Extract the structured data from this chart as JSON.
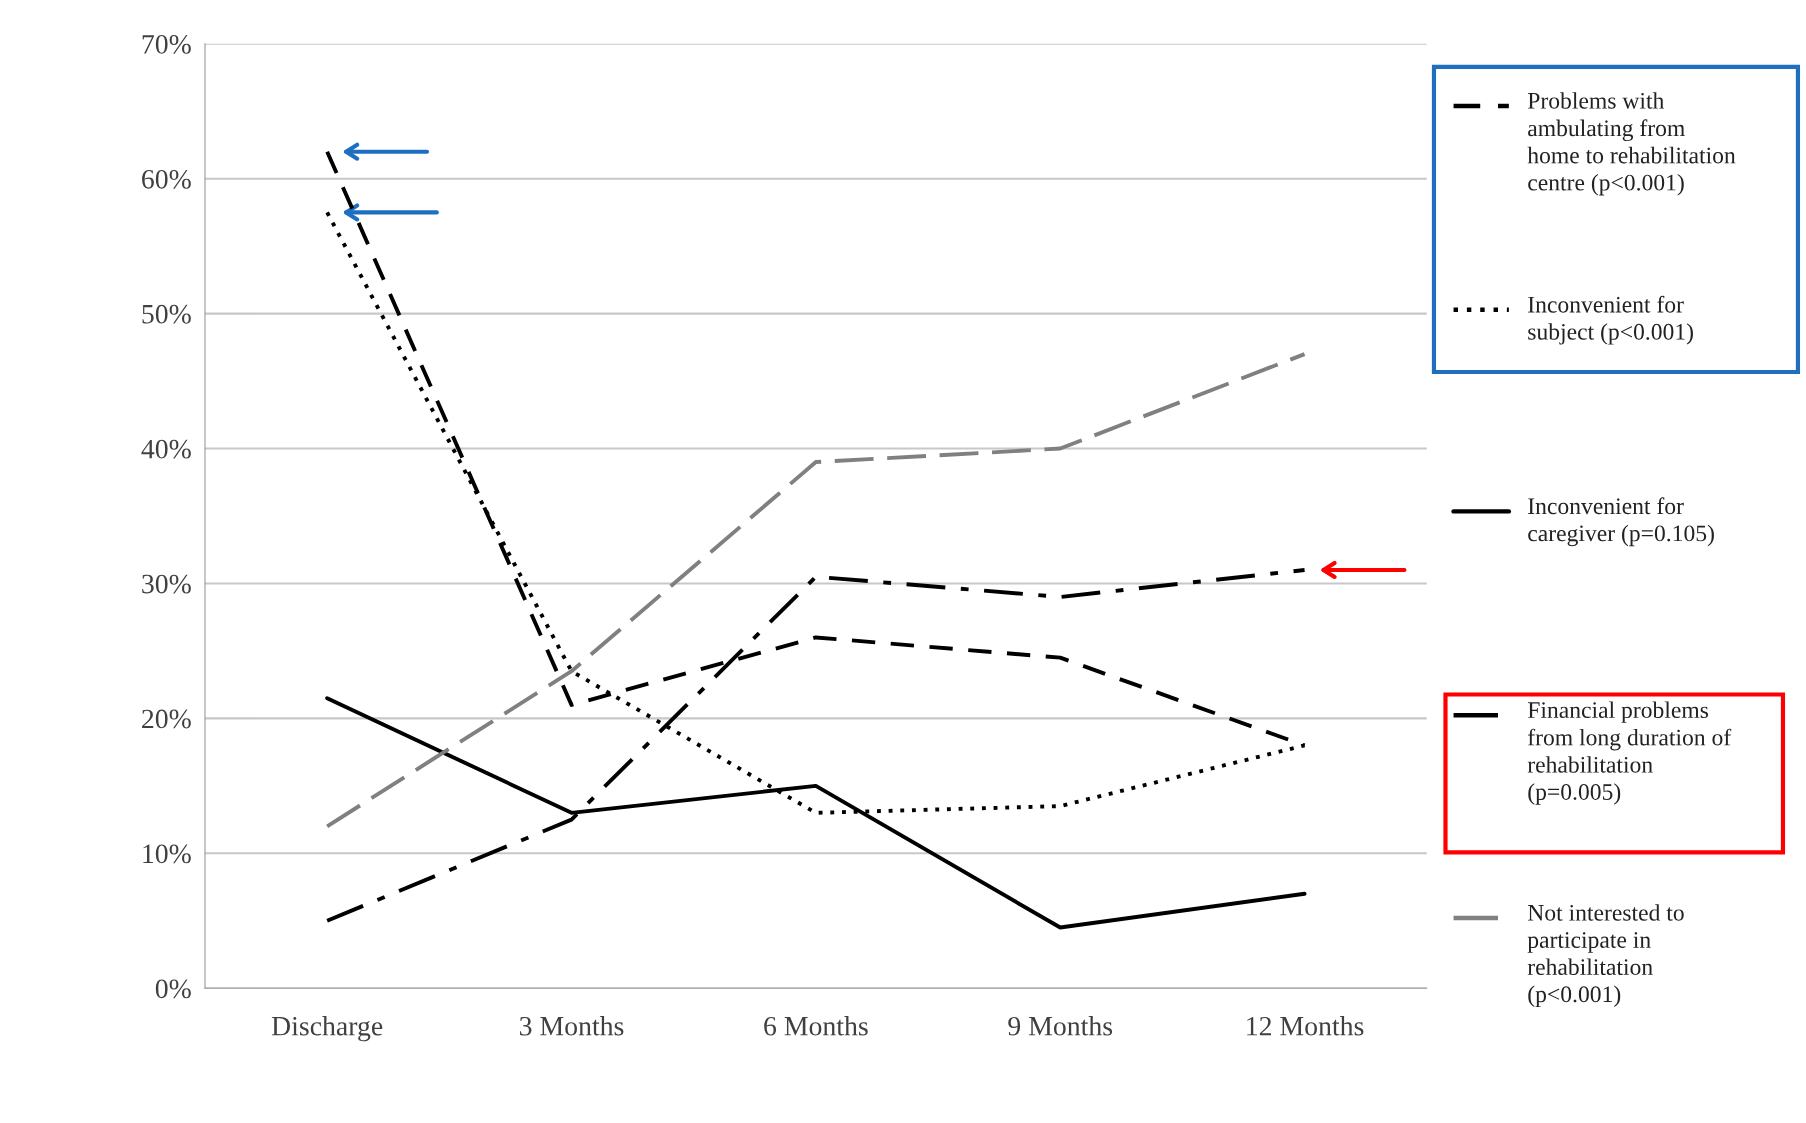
{
  "chart_data": {
    "type": "line",
    "categories": [
      "Discharge",
      "3 Months",
      "6 Months",
      "9 Months",
      "12 Months"
    ],
    "series": [
      {
        "name": "Problems with\nambulating from\nhome to rehabilitation\ncentre (p<0.001)",
        "color": "#000000",
        "line_style": "dashed",
        "values": [
          62,
          21,
          26,
          24.5,
          18
        ]
      },
      {
        "name": "Inconvenient for\nsubject (p<0.001)",
        "color": "#000000",
        "line_style": "dotted",
        "values": [
          57.5,
          23.5,
          13,
          13.5,
          18
        ]
      },
      {
        "name": "Inconvenient for\ncaregiver (p=0.105)",
        "color": "#000000",
        "line_style": "solid",
        "values": [
          21.5,
          13,
          15,
          4.5,
          7
        ]
      },
      {
        "name": "Financial problems\nfrom long duration of\nrehabilitation\n(p=0.005)",
        "color": "#000000",
        "line_style": "dashdot",
        "values": [
          5,
          12.5,
          30.5,
          29,
          31
        ]
      },
      {
        "name": "Not interested to\nparticipate in\nrehabilitation\n(p<0.001)",
        "color": "#808080",
        "line_style": "longdash",
        "values": [
          12,
          23.5,
          39,
          40,
          47
        ]
      }
    ],
    "ylim": [
      0,
      70
    ],
    "yticks": [
      {
        "value": 0,
        "label": "0%"
      },
      {
        "value": 10,
        "label": "10%"
      },
      {
        "value": 20,
        "label": "20%"
      },
      {
        "value": 30,
        "label": "30%"
      },
      {
        "value": 40,
        "label": "40%"
      },
      {
        "value": 50,
        "label": "50%"
      },
      {
        "value": 60,
        "label": "60%"
      },
      {
        "value": 70,
        "label": "70%"
      }
    ],
    "grid": "y",
    "legend": "right"
  }
}
